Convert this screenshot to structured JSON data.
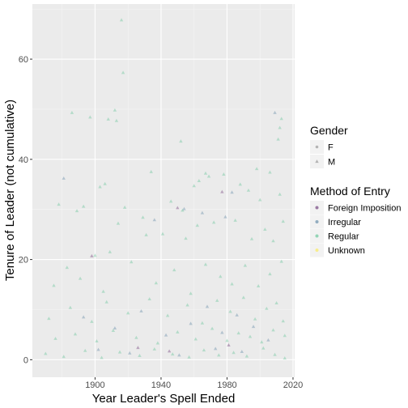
{
  "chart_data": {
    "type": "scatter",
    "xlabel": "Year Leader's Spell Ended",
    "ylabel": "Tenure of Leader (not cumulative)",
    "xlim": [
      1862,
      2021
    ],
    "ylim": [
      -3.5,
      71
    ],
    "x_ticks": [
      1900,
      1940,
      1980,
      2020
    ],
    "y_ticks": [
      0,
      20,
      40,
      60
    ],
    "x_tick_labels": [
      "1900",
      "1940",
      "1980",
      "2020"
    ],
    "y_tick_labels": [
      "0",
      "20",
      "40",
      "60"
    ],
    "grid": true,
    "legend_position": "right",
    "legends": [
      {
        "title": "Gender",
        "items": [
          {
            "label": "F",
            "shape": "circle",
            "color": "#999999"
          },
          {
            "label": "M",
            "shape": "triangle",
            "color": "#999999"
          }
        ]
      },
      {
        "title": "Method of Entry",
        "items": [
          {
            "label": "Foreign Imposition",
            "color": "#440154"
          },
          {
            "label": "Irregular",
            "color": "#31688E"
          },
          {
            "label": "Regular",
            "color": "#35B779"
          },
          {
            "label": "Unknown",
            "color": "#FDE725"
          }
        ]
      }
    ],
    "series": [
      {
        "name": "Regular",
        "shape": "triangle",
        "color": "#35B779",
        "points": [
          [
            1916,
            67.8
          ],
          [
            1917,
            57.3
          ],
          [
            1908,
            48.0
          ],
          [
            1912,
            49.8
          ],
          [
            1913,
            47.7
          ],
          [
            1897,
            48.4
          ],
          [
            1886,
            49.3
          ],
          [
            1952,
            43.6
          ],
          [
            2012,
            46.3
          ],
          [
            2013,
            48.1
          ],
          [
            1903,
            34.5
          ],
          [
            1906,
            35.1
          ],
          [
            1934,
            37.5
          ],
          [
            1960,
            34.7
          ],
          [
            1963,
            35.7
          ],
          [
            1967,
            37.2
          ],
          [
            1969,
            36.6
          ],
          [
            1978,
            37.0
          ],
          [
            1988,
            35.0
          ],
          [
            1993,
            33.8
          ],
          [
            1998,
            38.1
          ],
          [
            2006,
            37.4
          ],
          [
            2011,
            44.0
          ],
          [
            1878,
            31.0
          ],
          [
            1889,
            29.7
          ],
          [
            1893,
            30.6
          ],
          [
            1918,
            30.4
          ],
          [
            1929,
            28.4
          ],
          [
            1946,
            31.6
          ],
          [
            1953,
            29.8
          ],
          [
            2000,
            31.9
          ],
          [
            2012,
            33.0
          ],
          [
            1900,
            20.8
          ],
          [
            1909,
            21.5
          ],
          [
            1914,
            27.2
          ],
          [
            1931,
            24.9
          ],
          [
            1941,
            25.1
          ],
          [
            1955,
            24.2
          ],
          [
            1962,
            26.8
          ],
          [
            1972,
            27.4
          ],
          [
            1985,
            27.8
          ],
          [
            1995,
            24.1
          ],
          [
            2003,
            26.0
          ],
          [
            2008,
            23.7
          ],
          [
            2014,
            27.6
          ],
          [
            1875,
            14.8
          ],
          [
            1883,
            18.4
          ],
          [
            1891,
            16.2
          ],
          [
            1905,
            13.6
          ],
          [
            1922,
            19.5
          ],
          [
            1937,
            15.3
          ],
          [
            1948,
            17.9
          ],
          [
            1958,
            13.2
          ],
          [
            1967,
            19.0
          ],
          [
            1976,
            16.6
          ],
          [
            1983,
            15.1
          ],
          [
            1991,
            18.8
          ],
          [
            1999,
            14.7
          ],
          [
            2006,
            17.1
          ],
          [
            2013,
            19.6
          ],
          [
            1872,
            8.2
          ],
          [
            1885,
            10.4
          ],
          [
            1898,
            7.6
          ],
          [
            1907,
            11.5
          ],
          [
            1920,
            9.3
          ],
          [
            1933,
            12.1
          ],
          [
            1944,
            8.8
          ],
          [
            1956,
            10.9
          ],
          [
            1965,
            7.3
          ],
          [
            1974,
            11.8
          ],
          [
            1982,
            9.6
          ],
          [
            1990,
            12.4
          ],
          [
            1997,
            8.1
          ],
          [
            2004,
            10.2
          ],
          [
            2010,
            11.3
          ],
          [
            2014,
            7.7
          ],
          [
            1876,
            4.2
          ],
          [
            1888,
            5.1
          ],
          [
            1901,
            3.7
          ],
          [
            1911,
            5.8
          ],
          [
            1925,
            4.4
          ],
          [
            1938,
            3.3
          ],
          [
            1950,
            5.5
          ],
          [
            1961,
            4.1
          ],
          [
            1971,
            6.2
          ],
          [
            1980,
            3.8
          ],
          [
            1987,
            5.3
          ],
          [
            1994,
            4.6
          ],
          [
            2001,
            3.5
          ],
          [
            2008,
            5.9
          ],
          [
            2015,
            4.8
          ],
          [
            1870,
            1.2
          ],
          [
            1881,
            0.6
          ],
          [
            1894,
            1.8
          ],
          [
            1904,
            0.4
          ],
          [
            1915,
            1.5
          ],
          [
            1927,
            0.8
          ],
          [
            1936,
            2.1
          ],
          [
            1947,
            1.1
          ],
          [
            1957,
            0.5
          ],
          [
            1966,
            1.9
          ],
          [
            1975,
            0.9
          ],
          [
            1984,
            1.4
          ],
          [
            1992,
            0.7
          ],
          [
            2002,
            2.3
          ],
          [
            2009,
            1.0
          ],
          [
            2015,
            0.3
          ]
        ]
      },
      {
        "name": "Irregular",
        "shape": "triangle",
        "color": "#31688E",
        "points": [
          [
            1881,
            36.2
          ],
          [
            1954,
            30.1
          ],
          [
            1983,
            33.4
          ],
          [
            2009,
            49.3
          ],
          [
            1965,
            29.3
          ],
          [
            1979,
            28.5
          ],
          [
            1936,
            27.9
          ],
          [
            1893,
            8.5
          ],
          [
            1912,
            6.3
          ],
          [
            1928,
            9.7
          ],
          [
            1943,
            4.9
          ],
          [
            1958,
            7.2
          ],
          [
            1968,
            10.6
          ],
          [
            1977,
            5.4
          ],
          [
            1986,
            8.9
          ],
          [
            1996,
            6.6
          ],
          [
            2005,
            3.9
          ],
          [
            1902,
            2.0
          ],
          [
            1921,
            1.3
          ],
          [
            1951,
            0.9
          ],
          [
            1973,
            2.2
          ],
          [
            1989,
            1.6
          ]
        ]
      },
      {
        "name": "Foreign Imposition",
        "shape": "triangle",
        "color": "#440154",
        "points": [
          [
            1950,
            30.3
          ],
          [
            1977,
            33.5
          ],
          [
            1926,
            2.4
          ],
          [
            1945,
            1.7
          ],
          [
            1981,
            2.9
          ],
          [
            1898,
            20.7
          ]
        ]
      }
    ]
  }
}
